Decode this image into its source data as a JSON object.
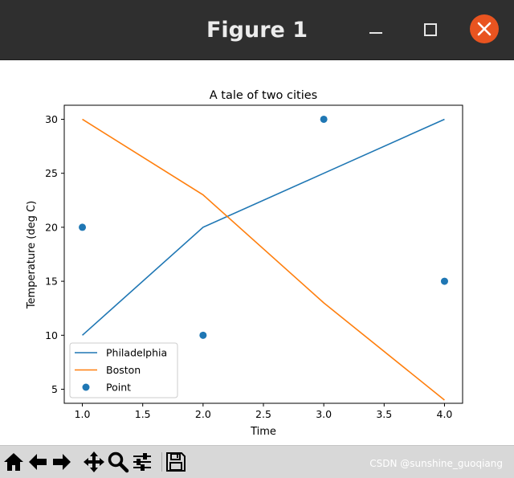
{
  "window": {
    "title": "Figure 1"
  },
  "icons": {
    "minimize": "minimize-icon",
    "maximize": "maximize-icon",
    "close": "close-icon",
    "home": "home-icon",
    "back": "arrow-left-icon",
    "forward": "arrow-right-icon",
    "pan": "move-icon",
    "zoom": "magnifier-icon",
    "configure": "sliders-icon",
    "save": "floppy-disk-icon"
  },
  "colors": {
    "titlebar": "#2f2f2f",
    "close_button": "#e95420",
    "series_1": "#1f77b4",
    "series_2": "#ff7f0e"
  },
  "watermark": "CSDN @sunshine_guoqiang",
  "chart_data": {
    "type": "line",
    "title": "A tale of two cities",
    "xlabel": "Time",
    "ylabel": "Temperature (deg C)",
    "xlim": [
      0.85,
      4.15
    ],
    "ylim": [
      3.7,
      31.3
    ],
    "xticks": [
      1.0,
      1.5,
      2.0,
      2.5,
      3.0,
      3.5,
      4.0
    ],
    "xtick_labels": [
      "1.0",
      "1.5",
      "2.0",
      "2.5",
      "3.0",
      "3.5",
      "4.0"
    ],
    "yticks": [
      5,
      10,
      15,
      20,
      25,
      30
    ],
    "ytick_labels": [
      "5",
      "10",
      "15",
      "20",
      "25",
      "30"
    ],
    "grid": false,
    "legend": "lower-left",
    "series": [
      {
        "name": "Philadelphia",
        "kind": "line",
        "color": "#1f77b4",
        "x": [
          1,
          2,
          3,
          4
        ],
        "y": [
          10,
          20,
          25,
          30
        ]
      },
      {
        "name": "Boston",
        "kind": "line",
        "color": "#ff7f0e",
        "x": [
          1,
          2,
          3,
          4
        ],
        "y": [
          30,
          23,
          13,
          4
        ]
      },
      {
        "name": "Point",
        "kind": "scatter",
        "color": "#1f77b4",
        "x": [
          1,
          2,
          3,
          4
        ],
        "y": [
          20,
          10,
          30,
          15
        ]
      }
    ]
  }
}
